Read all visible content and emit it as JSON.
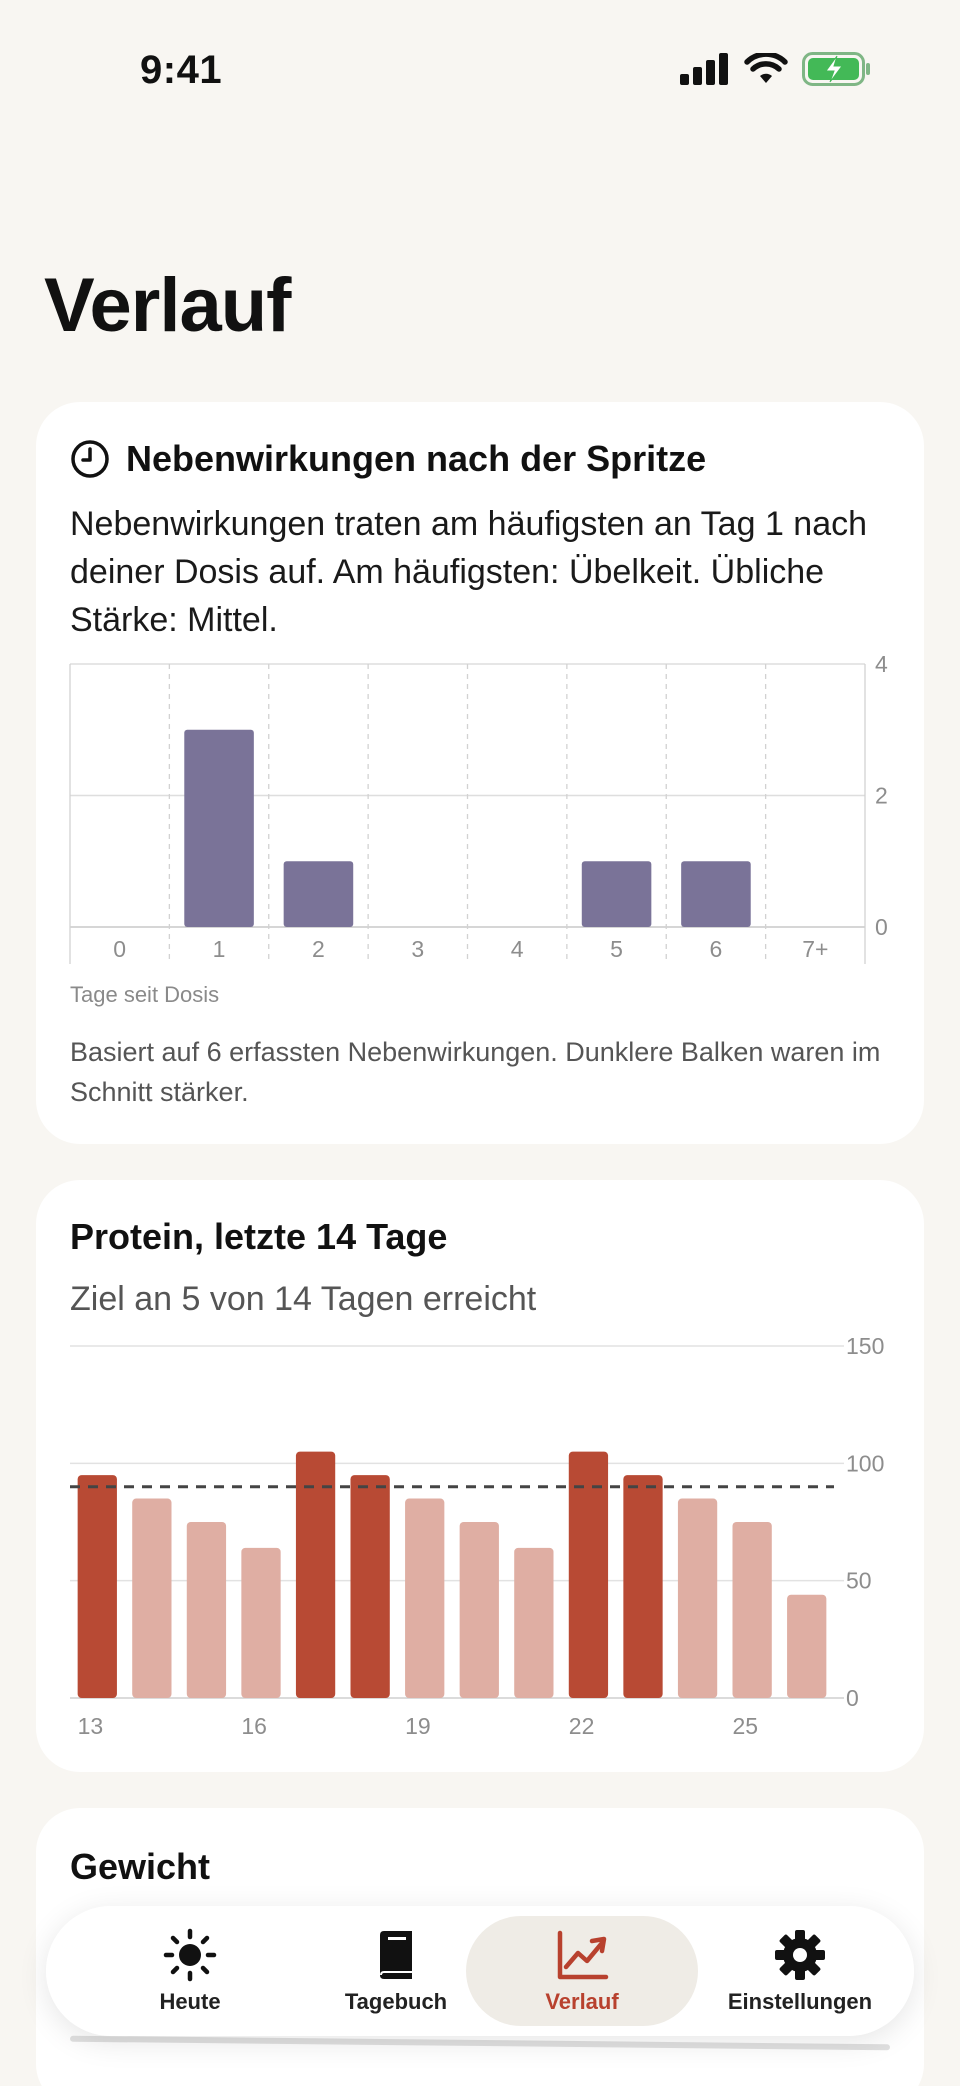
{
  "status_bar": {
    "time": "9:41"
  },
  "page": {
    "title": "Verlauf"
  },
  "side_effects_card": {
    "title": "Nebenwirkungen nach der Spritze",
    "icon": "clock-icon",
    "description": "Nebenwirkungen traten am häufigsten an Tag 1 nach deiner Dosis auf. Am häufigsten: Übelkeit. Übliche Stärke: Mittel.",
    "axis_caption": "Tage seit Dosis",
    "footnote": "Basiert auf 6 erfassten Nebenwirkungen. Dunklere Balken waren im Schnitt stärker."
  },
  "protein_card": {
    "title": "Protein, letzte 14 Tage",
    "subtitle": "Ziel an 5 von 14 Tagen erreicht"
  },
  "weight_card": {
    "title": "Gewicht"
  },
  "tab_bar": {
    "tabs": [
      {
        "label": "Heute",
        "icon": "sun-icon",
        "active": false
      },
      {
        "label": "Tagebuch",
        "icon": "book-icon",
        "active": false
      },
      {
        "label": "Verlauf",
        "icon": "trend-chart-icon",
        "active": true
      },
      {
        "label": "Einstellungen",
        "icon": "gear-icon",
        "active": false
      }
    ]
  },
  "colors": {
    "side_effect_bar": "#7a7398",
    "protein_goal_met": "#b84a34",
    "protein_below_goal": "#dfaea3",
    "accent": "#b8412e"
  },
  "chart_data": [
    {
      "type": "bar",
      "categories": [
        "0",
        "1",
        "2",
        "3",
        "4",
        "5",
        "6",
        "7+"
      ],
      "values": [
        0,
        3,
        1,
        0,
        0,
        1,
        1,
        0
      ],
      "xlabel": "Tage seit Dosis",
      "ylim": [
        0,
        4
      ],
      "yticks": [
        0,
        2,
        4
      ],
      "y_axis_side": "right",
      "grid": true
    },
    {
      "type": "bar",
      "x": [
        13,
        14,
        15,
        16,
        17,
        18,
        19,
        20,
        21,
        22,
        23,
        24,
        25,
        26
      ],
      "xtick_labels": [
        "13",
        "16",
        "19",
        "22",
        "25"
      ],
      "values": [
        95,
        85,
        75,
        64,
        105,
        95,
        85,
        75,
        64,
        105,
        95,
        85,
        75,
        44
      ],
      "goal_met": [
        true,
        false,
        false,
        false,
        true,
        true,
        false,
        false,
        false,
        true,
        true,
        false,
        false,
        false
      ],
      "goal": 90,
      "ylim": [
        0,
        150
      ],
      "yticks": [
        0,
        50,
        100,
        150
      ],
      "y_axis_side": "right",
      "grid": true
    }
  ]
}
